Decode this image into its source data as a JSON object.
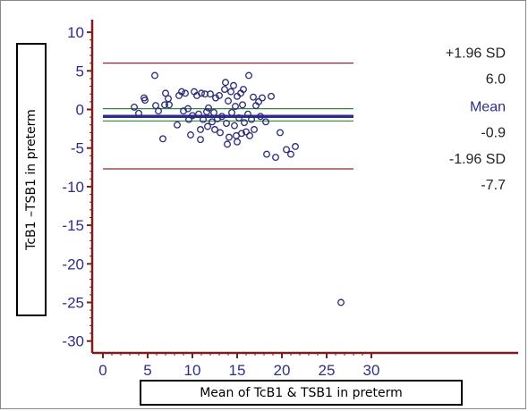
{
  "chart_data": {
    "type": "scatter",
    "title": "",
    "xlabel": "Mean of TcB1 & TSB1 in preterm",
    "ylabel": "TcB1 –TSB1 in preterm",
    "xlim": [
      -1,
      30
    ],
    "ylim": [
      -31,
      11
    ],
    "xticks": [
      0,
      5,
      10,
      15,
      20,
      25,
      30
    ],
    "yticks": [
      10,
      5,
      0,
      -5,
      -10,
      -15,
      -20,
      -25,
      -30
    ],
    "grid": false,
    "reference_lines": [
      {
        "name": "+1.96 SD",
        "value": 6.0,
        "value_label": "6.0",
        "color": "#8b2a2a"
      },
      {
        "name": "Mean",
        "value": -0.9,
        "value_label": "-0.9",
        "color": "#2e2e8a"
      },
      {
        "name": "-1.96 SD",
        "value": -7.7,
        "value_label": "-7.7",
        "color": "#8b2a2a"
      }
    ],
    "zero_band": [
      0.1,
      -1.5
    ],
    "x_limit_line": 28,
    "points": [
      [
        3.5,
        0.3
      ],
      [
        4,
        -0.5
      ],
      [
        4.6,
        1.5
      ],
      [
        4.7,
        1.2
      ],
      [
        5.8,
        4.4
      ],
      [
        5.9,
        0.5
      ],
      [
        6.2,
        -0.2
      ],
      [
        6.7,
        -3.8
      ],
      [
        6.9,
        0.6
      ],
      [
        7,
        2.1
      ],
      [
        7.3,
        1.4
      ],
      [
        7.4,
        0.6
      ],
      [
        8.3,
        -2
      ],
      [
        8.5,
        1.8
      ],
      [
        8.8,
        2.3
      ],
      [
        9,
        -0.2
      ],
      [
        9.2,
        2.1
      ],
      [
        9.5,
        0.1
      ],
      [
        9.6,
        -1.3
      ],
      [
        9.8,
        -3.3
      ],
      [
        10,
        -0.8
      ],
      [
        10.2,
        2.3
      ],
      [
        10.5,
        1.8
      ],
      [
        10.7,
        -0.6
      ],
      [
        10.9,
        -2.6
      ],
      [
        10.9,
        -3.9
      ],
      [
        11,
        2.1
      ],
      [
        11.2,
        -1.3
      ],
      [
        11.4,
        2
      ],
      [
        11.6,
        -0.3
      ],
      [
        11.7,
        -2.2
      ],
      [
        11.8,
        0.2
      ],
      [
        12,
        2
      ],
      [
        12.2,
        -1.6
      ],
      [
        12.4,
        -0.4
      ],
      [
        12.5,
        -2.6
      ],
      [
        12.6,
        1.5
      ],
      [
        12.8,
        -1.2
      ],
      [
        13.0,
        1.8
      ],
      [
        13.1,
        -3
      ],
      [
        13.3,
        -0.9
      ],
      [
        13.6,
        2.6
      ],
      [
        13.7,
        3.5
      ],
      [
        13.8,
        -1.8
      ],
      [
        13.9,
        -4.5
      ],
      [
        14,
        1.1
      ],
      [
        14.1,
        -3.6
      ],
      [
        14.3,
        2.3
      ],
      [
        14.4,
        -0.4
      ],
      [
        14.6,
        3.1
      ],
      [
        14.7,
        -2.1
      ],
      [
        14.8,
        0.4
      ],
      [
        14.9,
        -3.4
      ],
      [
        15,
        1.7
      ],
      [
        15.0,
        -4.2
      ],
      [
        15.2,
        -1.1
      ],
      [
        15.4,
        2.1
      ],
      [
        15.5,
        -3.1
      ],
      [
        15.6,
        0.6
      ],
      [
        15.7,
        2.6
      ],
      [
        15.8,
        -1.7
      ],
      [
        16,
        -2.9
      ],
      [
        16.2,
        -0.6
      ],
      [
        16.3,
        4.4
      ],
      [
        16.4,
        -3.4
      ],
      [
        16.6,
        -1.3
      ],
      [
        16.8,
        1.6
      ],
      [
        16.9,
        -2.6
      ],
      [
        17.1,
        0.5
      ],
      [
        17.4,
        1.0
      ],
      [
        17.6,
        -0.9
      ],
      [
        17.8,
        1.5
      ],
      [
        18.2,
        -1.6
      ],
      [
        18.3,
        -5.8
      ],
      [
        18.8,
        1.7
      ],
      [
        19.3,
        -6.2
      ],
      [
        19.8,
        -3
      ],
      [
        20.5,
        -5.2
      ],
      [
        21,
        -5.8
      ],
      [
        21.5,
        -4.8
      ],
      [
        26.6,
        -25
      ]
    ]
  }
}
